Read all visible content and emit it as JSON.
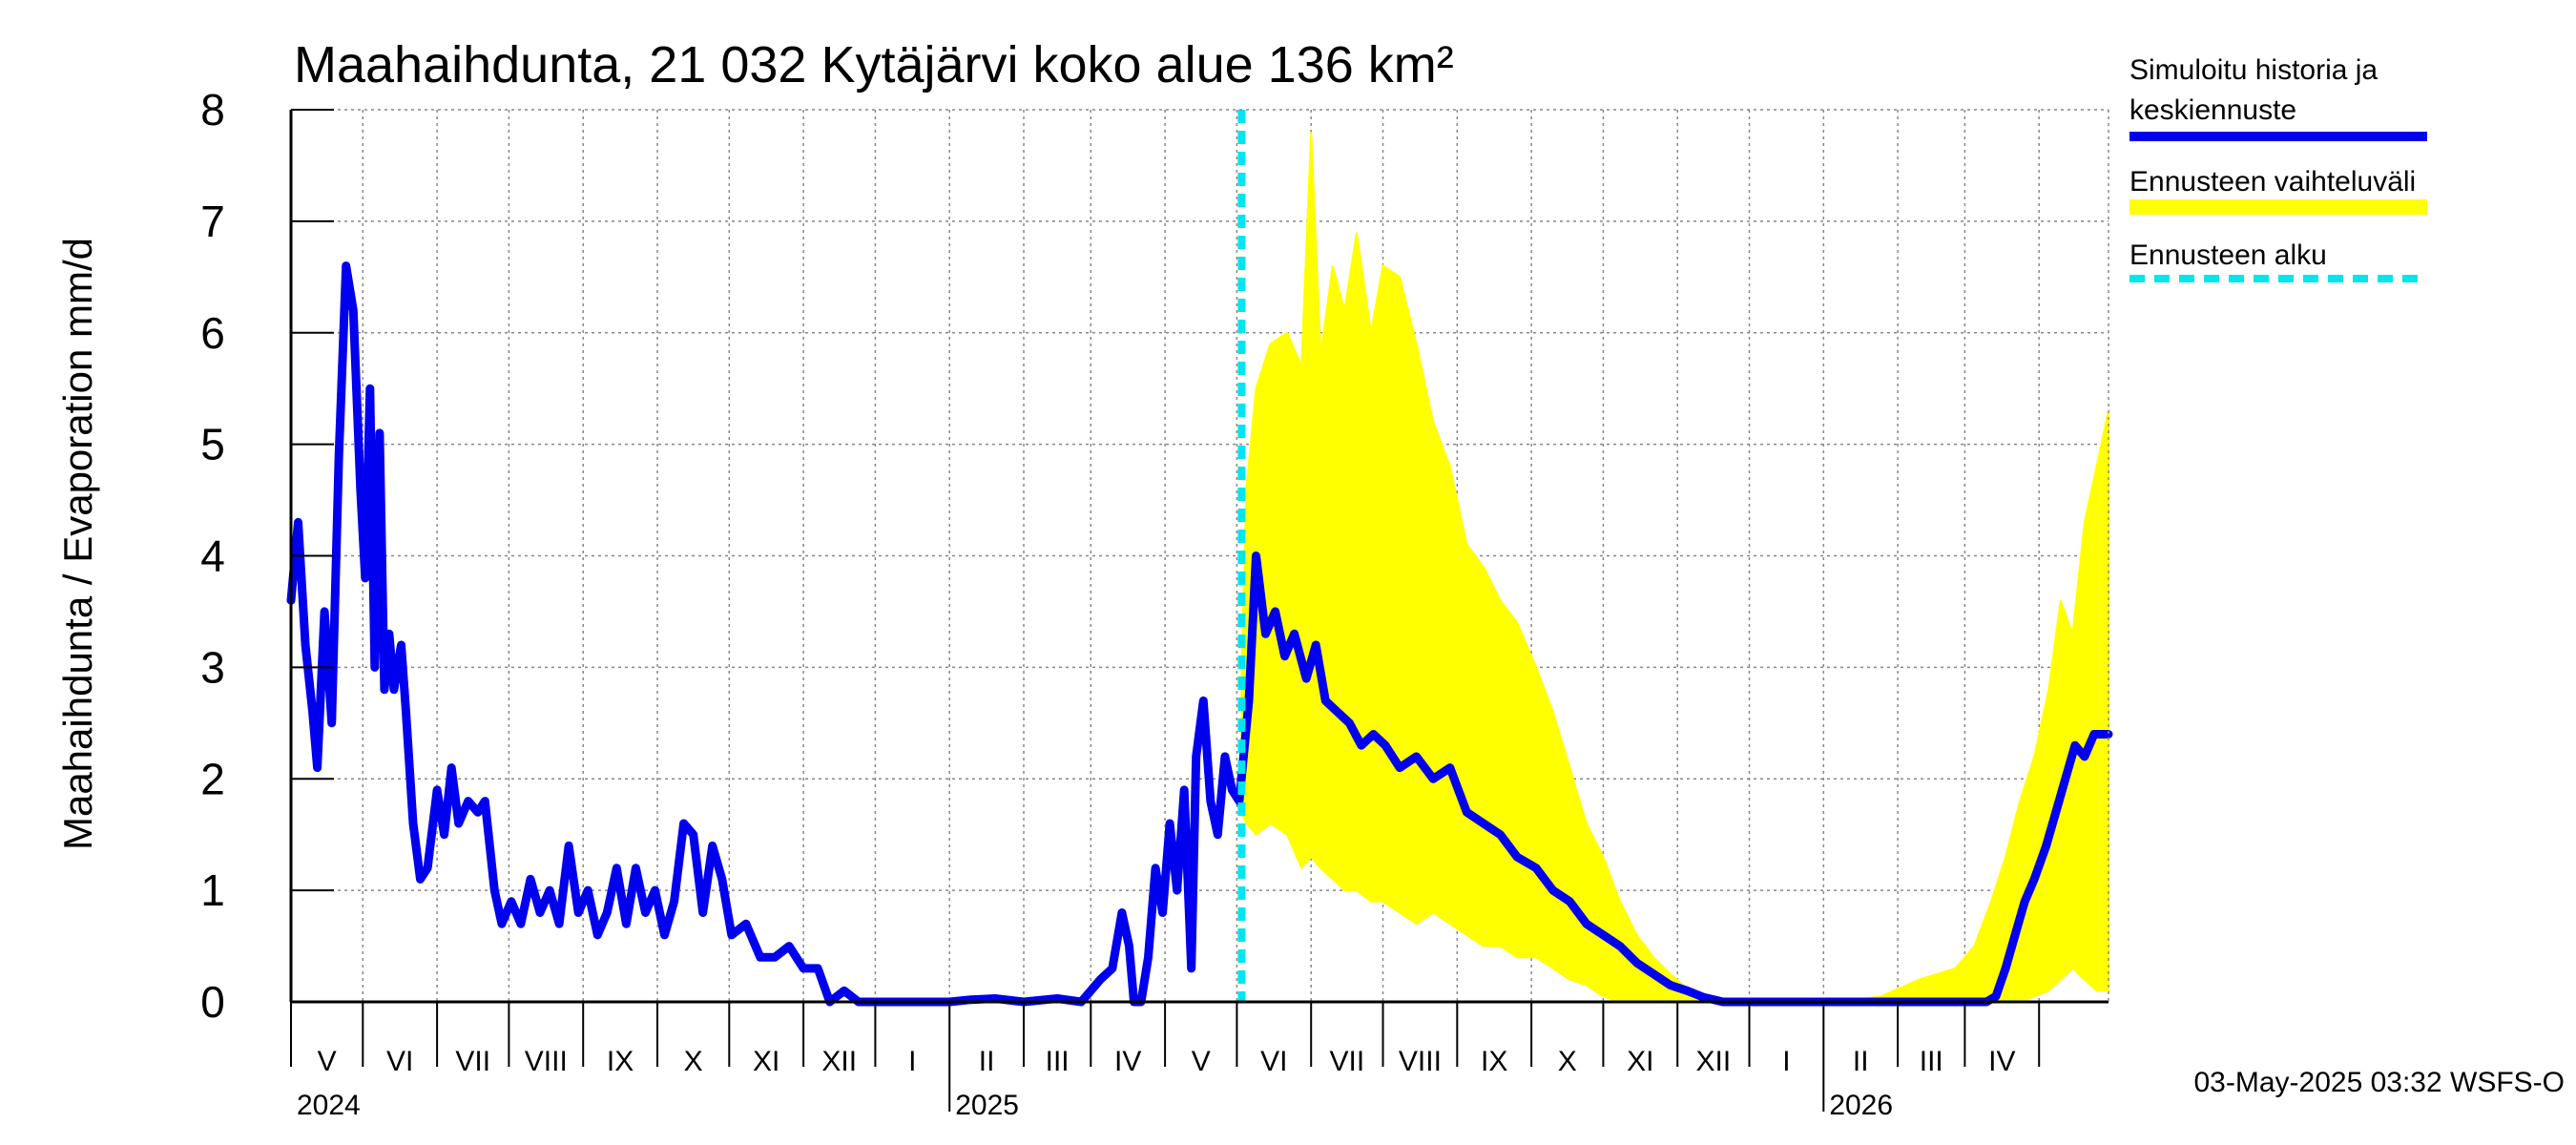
{
  "chart_data": {
    "type": "line",
    "title": "Maahaihdunta, 21 032 Kytäjärvi koko alue 136 km²",
    "ylabel": "Maahaihdunta / Evaporation   mm/d",
    "ylim": [
      0,
      8
    ],
    "yticks": [
      "0",
      "1",
      "2",
      "3",
      "4",
      "5",
      "6",
      "7",
      "8"
    ],
    "grid": true,
    "legend_position": "right",
    "x_start": "2024-04-01",
    "x_end": "2026-04-30",
    "forecast_start": "2025-05-03",
    "month_labels": [
      "V",
      "VI",
      "VII",
      "VIII",
      "IX",
      "X",
      "XI",
      "XII",
      "I",
      "II",
      "III",
      "IV",
      "V",
      "VI",
      "VII",
      "VIII",
      "IX",
      "X",
      "XI",
      "XII",
      "I",
      "II",
      "III",
      "IV"
    ],
    "year_labels": [
      "2024",
      "2025",
      "2026"
    ],
    "colors": {
      "history": "#0000ee",
      "range": "#ffff00",
      "forecast_start": "#00e5ee",
      "grid": "#888888"
    },
    "series": [
      {
        "name": "Simuloitu historia ja keskiennuste",
        "points": [
          [
            "2024-04-01",
            3.6
          ],
          [
            "2024-04-04",
            4.3
          ],
          [
            "2024-04-07",
            3.2
          ],
          [
            "2024-04-10",
            2.6
          ],
          [
            "2024-04-12",
            2.1
          ],
          [
            "2024-04-15",
            3.5
          ],
          [
            "2024-04-18",
            2.5
          ],
          [
            "2024-04-21",
            4.9
          ],
          [
            "2024-04-24",
            6.6
          ],
          [
            "2024-04-27",
            6.2
          ],
          [
            "2024-04-30",
            4.6
          ],
          [
            "2024-05-02",
            3.8
          ],
          [
            "2024-05-04",
            5.5
          ],
          [
            "2024-05-06",
            3.0
          ],
          [
            "2024-05-08",
            5.1
          ],
          [
            "2024-05-10",
            2.8
          ],
          [
            "2024-05-12",
            3.3
          ],
          [
            "2024-05-14",
            2.8
          ],
          [
            "2024-05-17",
            3.2
          ],
          [
            "2024-05-19",
            2.6
          ],
          [
            "2024-05-22",
            1.6
          ],
          [
            "2024-05-25",
            1.1
          ],
          [
            "2024-05-28",
            1.2
          ],
          [
            "2024-06-01",
            1.9
          ],
          [
            "2024-06-04",
            1.5
          ],
          [
            "2024-06-07",
            2.1
          ],
          [
            "2024-06-10",
            1.6
          ],
          [
            "2024-06-14",
            1.8
          ],
          [
            "2024-06-18",
            1.7
          ],
          [
            "2024-06-21",
            1.8
          ],
          [
            "2024-06-25",
            1.0
          ],
          [
            "2024-06-28",
            0.7
          ],
          [
            "2024-07-02",
            0.9
          ],
          [
            "2024-07-06",
            0.7
          ],
          [
            "2024-07-10",
            1.1
          ],
          [
            "2024-07-14",
            0.8
          ],
          [
            "2024-07-18",
            1.0
          ],
          [
            "2024-07-22",
            0.7
          ],
          [
            "2024-07-26",
            1.4
          ],
          [
            "2024-07-30",
            0.8
          ],
          [
            "2024-08-03",
            1.0
          ],
          [
            "2024-08-07",
            0.6
          ],
          [
            "2024-08-11",
            0.8
          ],
          [
            "2024-08-15",
            1.2
          ],
          [
            "2024-08-19",
            0.7
          ],
          [
            "2024-08-23",
            1.2
          ],
          [
            "2024-08-27",
            0.8
          ],
          [
            "2024-08-31",
            1.0
          ],
          [
            "2024-09-04",
            0.6
          ],
          [
            "2024-09-08",
            0.9
          ],
          [
            "2024-09-12",
            1.6
          ],
          [
            "2024-09-16",
            1.5
          ],
          [
            "2024-09-20",
            0.8
          ],
          [
            "2024-09-24",
            1.4
          ],
          [
            "2024-09-28",
            1.1
          ],
          [
            "2024-10-02",
            0.6
          ],
          [
            "2024-10-08",
            0.7
          ],
          [
            "2024-10-14",
            0.4
          ],
          [
            "2024-10-20",
            0.4
          ],
          [
            "2024-10-26",
            0.5
          ],
          [
            "2024-11-01",
            0.3
          ],
          [
            "2024-11-07",
            0.3
          ],
          [
            "2024-11-12",
            0.0
          ],
          [
            "2024-11-18",
            0.1
          ],
          [
            "2024-11-24",
            0.0
          ],
          [
            "2024-12-01",
            0.0
          ],
          [
            "2024-12-15",
            0.0
          ],
          [
            "2025-01-01",
            0.0
          ],
          [
            "2025-01-10",
            0.02
          ],
          [
            "2025-01-20",
            0.03
          ],
          [
            "2025-02-01",
            0.0
          ],
          [
            "2025-02-15",
            0.03
          ],
          [
            "2025-02-25",
            0.0
          ],
          [
            "2025-03-05",
            0.2
          ],
          [
            "2025-03-10",
            0.3
          ],
          [
            "2025-03-14",
            0.8
          ],
          [
            "2025-03-17",
            0.5
          ],
          [
            "2025-03-19",
            0.0
          ],
          [
            "2025-03-22",
            0.0
          ],
          [
            "2025-03-25",
            0.4
          ],
          [
            "2025-03-28",
            1.2
          ],
          [
            "2025-03-31",
            0.8
          ],
          [
            "2025-04-03",
            1.6
          ],
          [
            "2025-04-06",
            1.0
          ],
          [
            "2025-04-09",
            1.9
          ],
          [
            "2025-04-12",
            0.3
          ],
          [
            "2025-04-14",
            2.2
          ],
          [
            "2025-04-17",
            2.7
          ],
          [
            "2025-04-20",
            1.8
          ],
          [
            "2025-04-23",
            1.5
          ],
          [
            "2025-04-26",
            2.2
          ],
          [
            "2025-04-29",
            1.9
          ],
          [
            "2025-05-02",
            1.8
          ],
          [
            "2025-05-06",
            2.7
          ],
          [
            "2025-05-09",
            4.0
          ],
          [
            "2025-05-13",
            3.3
          ],
          [
            "2025-05-17",
            3.5
          ],
          [
            "2025-05-21",
            3.1
          ],
          [
            "2025-05-25",
            3.3
          ],
          [
            "2025-05-30",
            2.9
          ],
          [
            "2025-06-03",
            3.2
          ],
          [
            "2025-06-07",
            2.7
          ],
          [
            "2025-06-12",
            2.6
          ],
          [
            "2025-06-17",
            2.5
          ],
          [
            "2025-06-22",
            2.3
          ],
          [
            "2025-06-27",
            2.4
          ],
          [
            "2025-07-02",
            2.3
          ],
          [
            "2025-07-08",
            2.1
          ],
          [
            "2025-07-15",
            2.2
          ],
          [
            "2025-07-22",
            2.0
          ],
          [
            "2025-07-29",
            2.1
          ],
          [
            "2025-08-05",
            1.7
          ],
          [
            "2025-08-12",
            1.6
          ],
          [
            "2025-08-19",
            1.5
          ],
          [
            "2025-08-26",
            1.3
          ],
          [
            "2025-09-03",
            1.2
          ],
          [
            "2025-09-10",
            1.0
          ],
          [
            "2025-09-17",
            0.9
          ],
          [
            "2025-09-24",
            0.7
          ],
          [
            "2025-10-01",
            0.6
          ],
          [
            "2025-10-08",
            0.5
          ],
          [
            "2025-10-15",
            0.35
          ],
          [
            "2025-10-22",
            0.25
          ],
          [
            "2025-10-29",
            0.15
          ],
          [
            "2025-11-05",
            0.1
          ],
          [
            "2025-11-12",
            0.04
          ],
          [
            "2025-11-20",
            0.0
          ],
          [
            "2025-12-15",
            0.0
          ],
          [
            "2026-01-15",
            0.0
          ],
          [
            "2026-02-15",
            0.0
          ],
          [
            "2026-03-10",
            0.0
          ],
          [
            "2026-03-14",
            0.05
          ],
          [
            "2026-03-18",
            0.3
          ],
          [
            "2026-03-22",
            0.6
          ],
          [
            "2026-03-26",
            0.9
          ],
          [
            "2026-03-30",
            1.1
          ],
          [
            "2026-04-04",
            1.4
          ],
          [
            "2026-04-08",
            1.7
          ],
          [
            "2026-04-12",
            2.0
          ],
          [
            "2026-04-16",
            2.3
          ],
          [
            "2026-04-20",
            2.2
          ],
          [
            "2026-04-24",
            2.4
          ],
          [
            "2026-04-30",
            2.4
          ]
        ]
      },
      {
        "name": "Ennusteen vaihteluväli",
        "band": [
          [
            "2025-05-03",
            1.7,
            3.0
          ],
          [
            "2025-05-05",
            1.6,
            4.6
          ],
          [
            "2025-05-09",
            1.5,
            5.5
          ],
          [
            "2025-05-15",
            1.6,
            5.9
          ],
          [
            "2025-05-22",
            1.5,
            6.0
          ],
          [
            "2025-05-28",
            1.2,
            5.7
          ],
          [
            "2025-06-01",
            1.3,
            7.8
          ],
          [
            "2025-06-05",
            1.2,
            5.8
          ],
          [
            "2025-06-10",
            1.1,
            6.6
          ],
          [
            "2025-06-15",
            1.0,
            6.2
          ],
          [
            "2025-06-20",
            1.0,
            6.9
          ],
          [
            "2025-06-26",
            0.9,
            6.0
          ],
          [
            "2025-07-01",
            0.9,
            6.6
          ],
          [
            "2025-07-08",
            0.8,
            6.5
          ],
          [
            "2025-07-15",
            0.7,
            5.9
          ],
          [
            "2025-07-22",
            0.8,
            5.2
          ],
          [
            "2025-07-29",
            0.7,
            4.8
          ],
          [
            "2025-08-05",
            0.6,
            4.1
          ],
          [
            "2025-08-12",
            0.5,
            3.9
          ],
          [
            "2025-08-19",
            0.5,
            3.6
          ],
          [
            "2025-08-26",
            0.4,
            3.4
          ],
          [
            "2025-09-03",
            0.4,
            3.0
          ],
          [
            "2025-09-10",
            0.3,
            2.6
          ],
          [
            "2025-09-17",
            0.2,
            2.1
          ],
          [
            "2025-09-24",
            0.15,
            1.6
          ],
          [
            "2025-10-01",
            0.05,
            1.3
          ],
          [
            "2025-10-08",
            0.0,
            0.9
          ],
          [
            "2025-10-15",
            0.0,
            0.6
          ],
          [
            "2025-10-22",
            0.0,
            0.4
          ],
          [
            "2025-10-29",
            0.0,
            0.25
          ],
          [
            "2025-11-05",
            0.0,
            0.12
          ],
          [
            "2025-11-15",
            0.0,
            0.05
          ],
          [
            "2025-11-25",
            0.0,
            0.0
          ],
          [
            "2026-01-10",
            0.0,
            0.0
          ],
          [
            "2026-01-25",
            0.0,
            0.05
          ],
          [
            "2026-02-10",
            0.0,
            0.2
          ],
          [
            "2026-02-25",
            0.0,
            0.3
          ],
          [
            "2026-03-05",
            0.0,
            0.5
          ],
          [
            "2026-03-12",
            0.0,
            0.9
          ],
          [
            "2026-03-18",
            0.0,
            1.3
          ],
          [
            "2026-03-24",
            0.0,
            1.8
          ],
          [
            "2026-03-30",
            0.05,
            2.2
          ],
          [
            "2026-04-05",
            0.1,
            2.8
          ],
          [
            "2026-04-10",
            0.2,
            3.6
          ],
          [
            "2026-04-15",
            0.3,
            3.3
          ],
          [
            "2026-04-20",
            0.2,
            4.3
          ],
          [
            "2026-04-25",
            0.1,
            4.8
          ],
          [
            "2026-04-30",
            0.1,
            5.3
          ]
        ]
      },
      {
        "name": "Ennusteen alku"
      }
    ]
  },
  "footer": "03-May-2025 03:32 WSFS-O",
  "legend": {
    "history_line1": "Simuloitu historia ja",
    "history_line2": "keskiennuste",
    "range": "Ennusteen vaihteluväli",
    "start": "Ennusteen alku"
  }
}
